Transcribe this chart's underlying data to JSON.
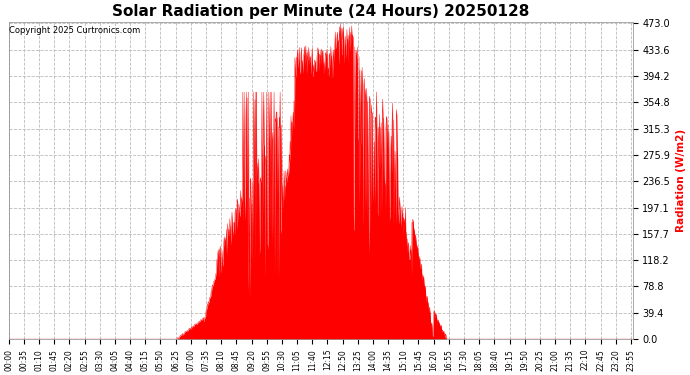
{
  "title": "Solar Radiation per Minute (24 Hours) 20250128",
  "copyright_text": "Copyright 2025 Curtronics.com",
  "ylabel": "Radiation (W/m2)",
  "ylabel_color": "#ff0000",
  "copyright_color": "#000000",
  "title_fontsize": 11,
  "background_color": "#ffffff",
  "fill_color": "#ff0000",
  "line_color": "#ff0000",
  "grid_color": "#bbbbbb",
  "ymin": 0.0,
  "ymax": 473.0,
  "yticks": [
    0.0,
    39.4,
    78.8,
    118.2,
    157.7,
    197.1,
    236.5,
    275.9,
    315.3,
    354.8,
    394.2,
    433.6,
    473.0
  ],
  "total_minutes": 1440,
  "sunrise_minute": 390,
  "sunset_minute": 1010,
  "peak_value": 473.0,
  "xtick_step": 35
}
